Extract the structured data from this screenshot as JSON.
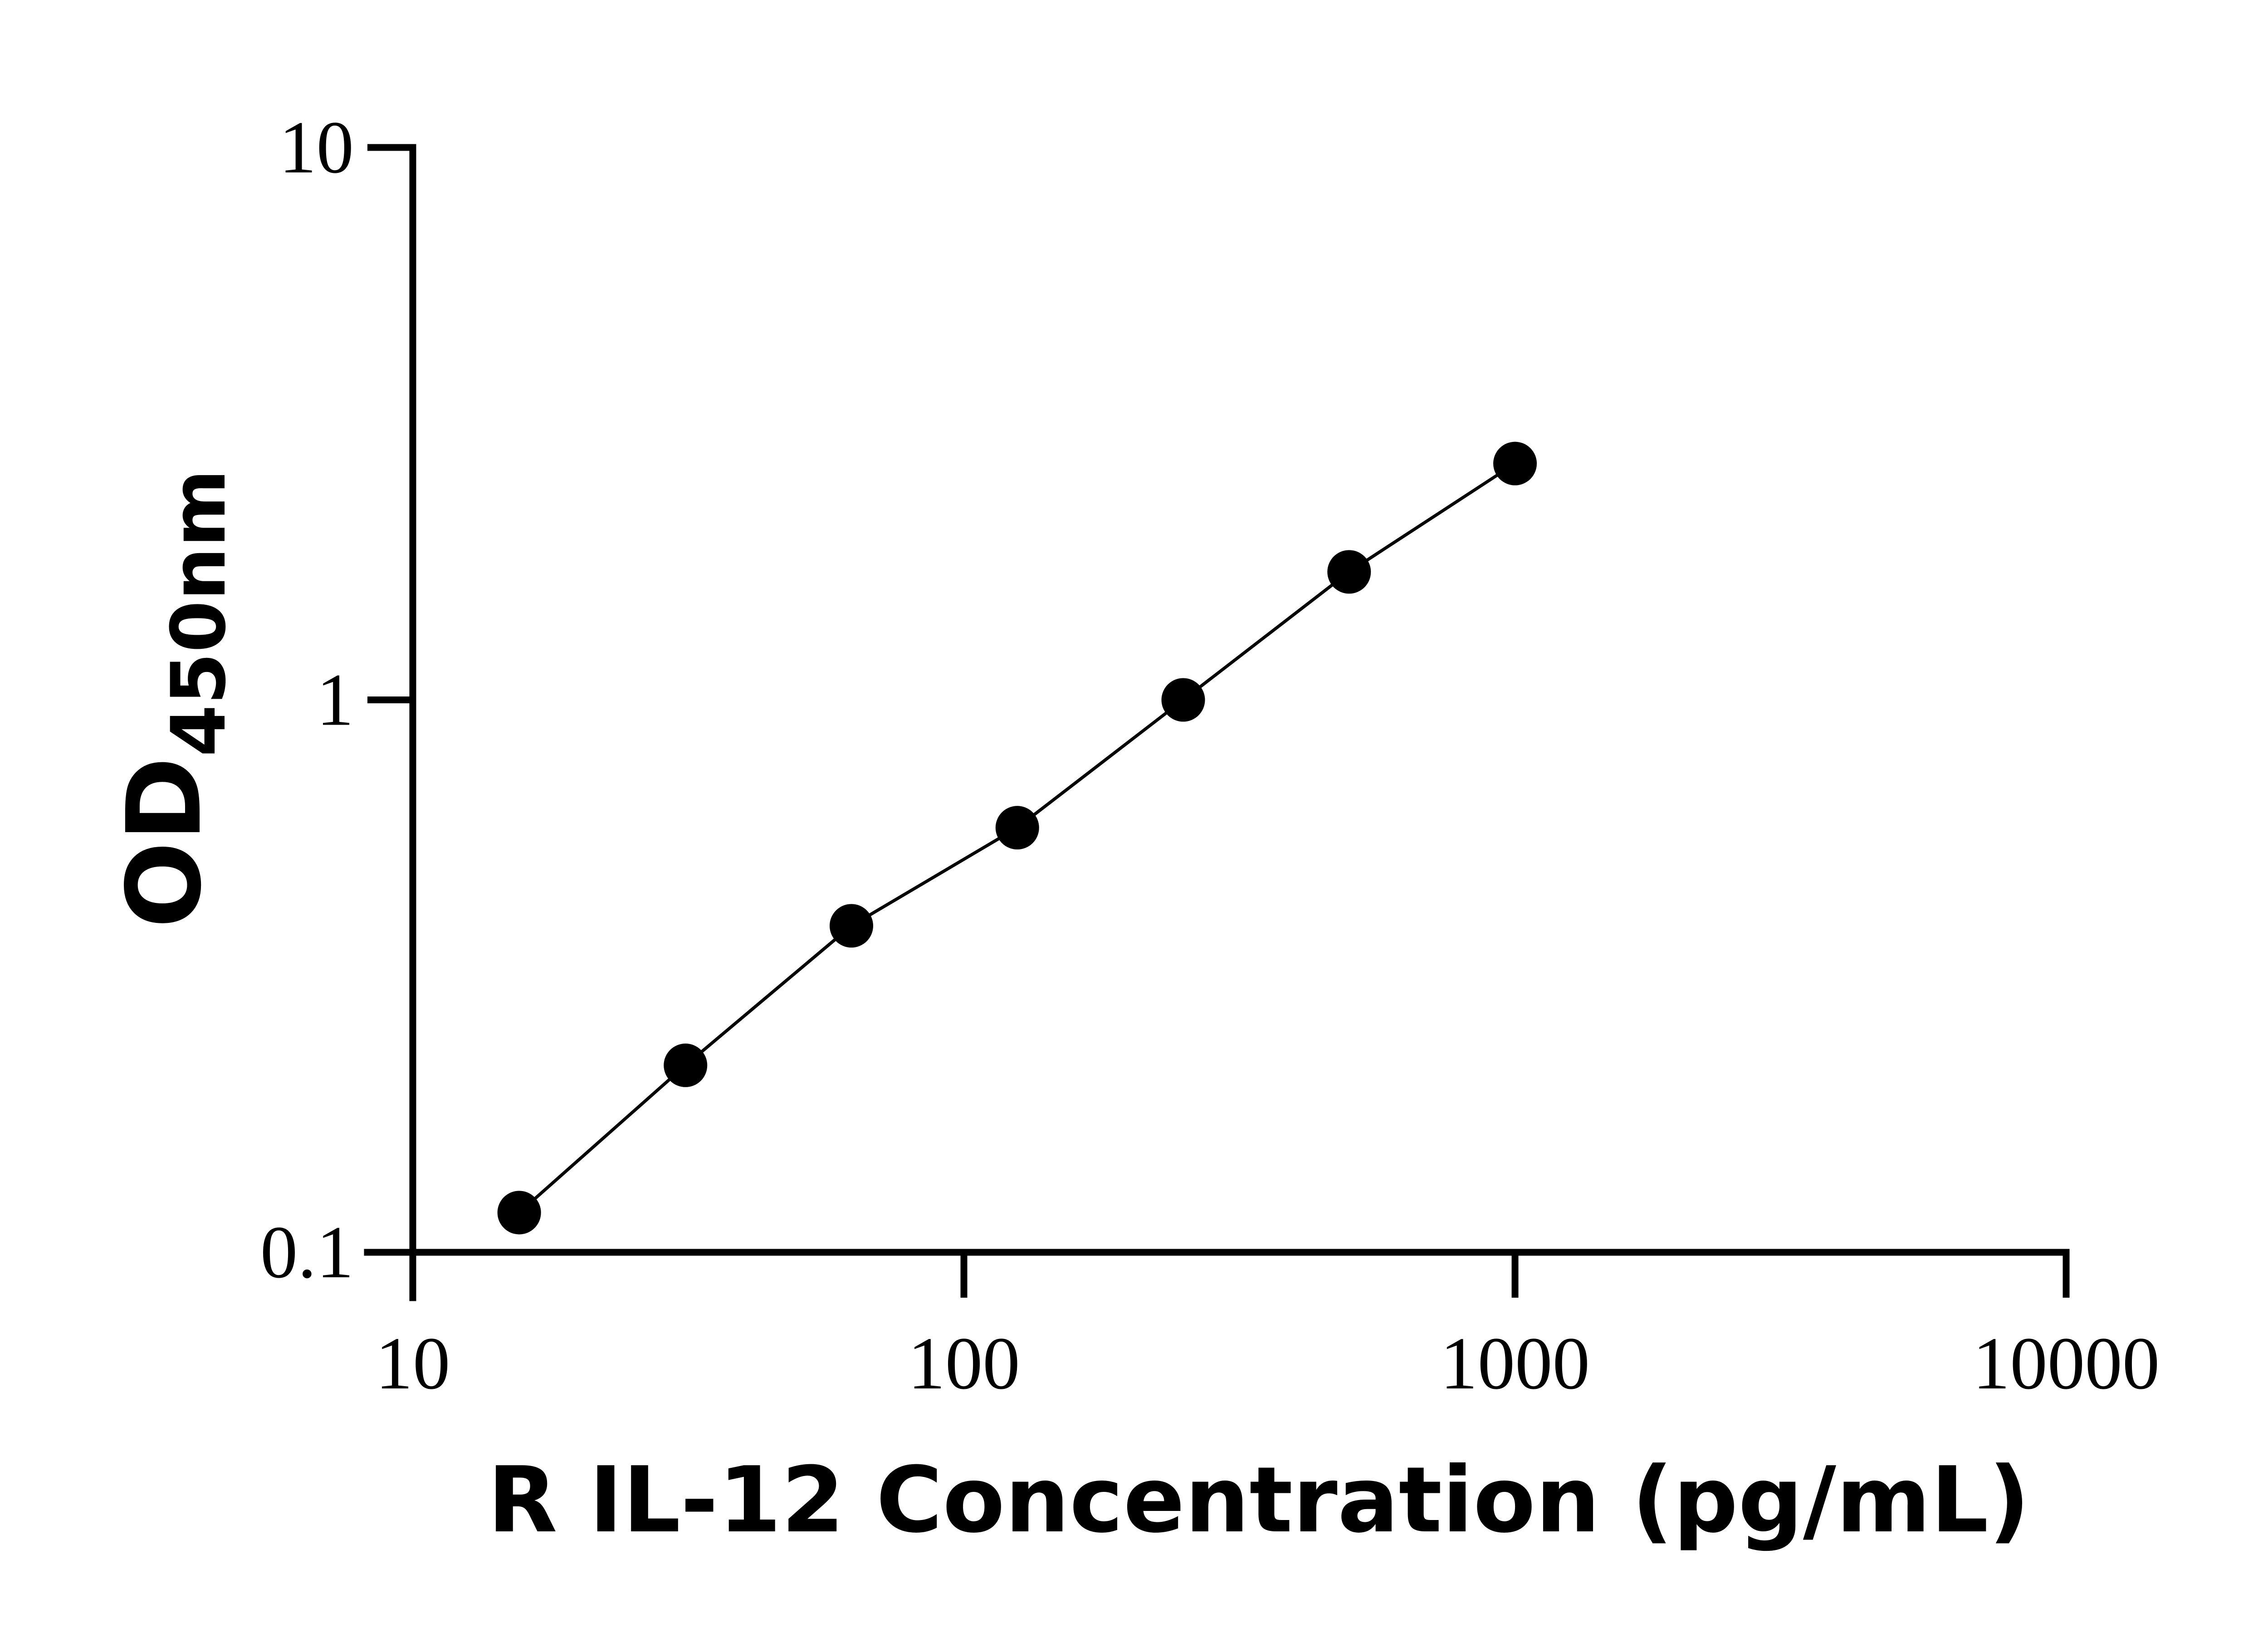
{
  "chart_data": {
    "type": "scatter",
    "xlabel": "R IL-12 Concentration (pg/mL)",
    "ylabel": {
      "main": "OD",
      "subscript": "450nm"
    },
    "x_scale": "log",
    "y_scale": "log",
    "xlim": [
      10,
      10000
    ],
    "ylim": [
      0.1,
      10
    ],
    "x_ticks": [
      "10",
      "100",
      "1000",
      "10000"
    ],
    "y_ticks": [
      "0.1",
      "1",
      "10"
    ],
    "grid": false,
    "legend": "none",
    "point_color": "#000000",
    "series": [
      {
        "x": [
          15.6,
          31.25,
          62.5,
          125,
          250,
          500,
          1000
        ],
        "y": [
          0.118,
          0.218,
          0.39,
          0.587,
          1.0,
          1.705,
          2.678
        ]
      }
    ]
  }
}
